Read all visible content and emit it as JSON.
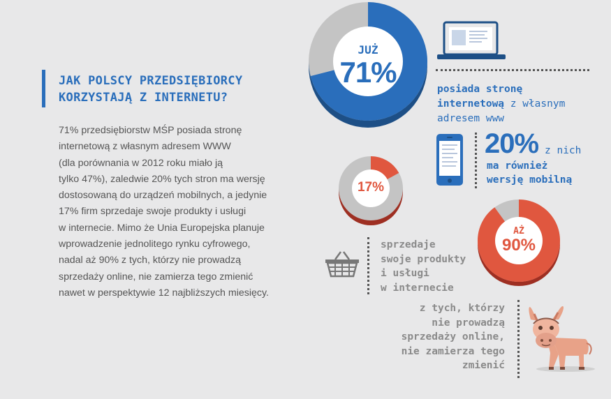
{
  "heading": {
    "line1": "JAK POLSCY PRZEDSIĘBIORCY",
    "line2": "KORZYSTAJĄ Z INTERNETU?"
  },
  "paragraph": [
    "71% przedsiębiorstw MŚP posiada stronę",
    "internetową z własnym adresem WWW",
    "(dla porównania w 2012 roku miało ją",
    "tylko 47%), zaledwie 20% tych stron ma wersję",
    "dostosowaną do urządzeń mobilnych, a jedynie",
    "17% firm sprzedaje swoje produkty i usługi",
    "w internecie. Mimo że Unia Europejska planuje",
    "wprowadzenie jednolitego rynku cyfrowego,",
    "nadal aż 90% z tych, którzy nie prowadzą",
    "sprzedaży online, nie zamierza tego zmienić",
    "nawet w perspektywie 12 najbliższych miesięcy."
  ],
  "stat_website": {
    "prefix": "JUŻ",
    "value_label": "71%",
    "value": 71,
    "caption_line1": "posiada stronę",
    "caption_line2_bold": "internetową",
    "caption_line2_rest": " z własnym",
    "caption_line3": "adresem www"
  },
  "stat_mobile": {
    "value_label": "20%",
    "value": 20,
    "caption_line1_rest": "z nich",
    "caption_line2": "ma również",
    "caption_line3": "wersję mobilną"
  },
  "stat_sales": {
    "value_label": "17%",
    "value": 17,
    "caption_line1": "sprzedaje",
    "caption_line2": "swoje produkty",
    "caption_line3": "i usługi",
    "caption_line4": "w internecie"
  },
  "stat_nochange": {
    "prefix": "AŻ",
    "value_label": "90%",
    "value": 90,
    "caption_line1": "z tych, którzy",
    "caption_line2": "nie prowadzą",
    "caption_line3": "sprzedaży online,",
    "caption_line4": "nie zamierza tego",
    "caption_line5": "zmienić"
  },
  "icons": [
    "laptop-icon",
    "smartphone-icon",
    "shopping-basket-icon",
    "donkey-icon"
  ],
  "colors": {
    "blue": "#2a6ebb",
    "red": "#e0573f",
    "grey": "#c4c4c4",
    "dark_red": "#9e2f22",
    "dark_blue": "#1d4f86"
  }
}
